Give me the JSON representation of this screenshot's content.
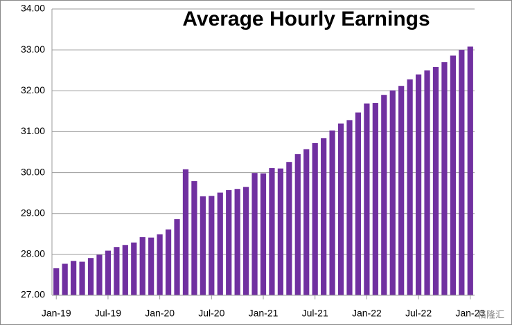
{
  "chart_data": {
    "type": "bar",
    "title": "Average Hourly Earnings",
    "color": "#7030a0",
    "grid": true,
    "categories": [
      "Jan-19",
      null,
      null,
      null,
      null,
      null,
      "Jul-19",
      null,
      null,
      null,
      null,
      null,
      "Jan-20",
      null,
      null,
      null,
      null,
      null,
      "Jul-20",
      null,
      null,
      null,
      null,
      null,
      "Jan-21",
      null,
      null,
      null,
      null,
      null,
      "Jul-21",
      null,
      null,
      null,
      null,
      null,
      "Jan-22",
      null,
      null,
      null,
      null,
      null,
      "Jul-22",
      null,
      null,
      null,
      null,
      null,
      "Jan-23"
    ],
    "values": [
      27.66,
      27.77,
      27.84,
      27.82,
      27.91,
      27.99,
      28.09,
      28.18,
      28.23,
      28.29,
      28.42,
      28.41,
      28.49,
      28.61,
      28.86,
      30.08,
      29.79,
      29.42,
      29.43,
      29.51,
      29.57,
      29.6,
      29.65,
      29.99,
      29.98,
      30.11,
      30.1,
      30.26,
      30.45,
      30.57,
      30.72,
      30.84,
      31.03,
      31.2,
      31.28,
      31.47,
      31.69,
      31.7,
      31.9,
      32.01,
      32.12,
      32.28,
      32.4,
      32.5,
      32.58,
      32.7,
      32.86,
      33.0,
      33.08
    ],
    "ylim": [
      27,
      34
    ],
    "yticks": [
      {
        "value": 27,
        "label": "27.00"
      },
      {
        "value": 28,
        "label": "28.00"
      },
      {
        "value": 29,
        "label": "29.00"
      },
      {
        "value": 30,
        "label": "30.00"
      },
      {
        "value": 31,
        "label": "31.00"
      },
      {
        "value": 32,
        "label": "32.00"
      },
      {
        "value": 33,
        "label": "33.00"
      },
      {
        "value": 34,
        "label": "34.00"
      }
    ]
  },
  "watermark": "格隆汇"
}
